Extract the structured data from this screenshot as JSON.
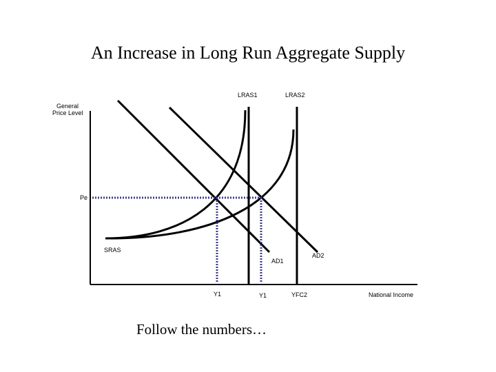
{
  "title": "An Increase in Long Run Aggregate Supply",
  "footer": "Follow the numbers…",
  "axes": {
    "y_label_line1": "General",
    "y_label_line2": "Price Level",
    "x_label": "National Income"
  },
  "labels": {
    "lras1": "LRAS1",
    "lras2": "LRAS2",
    "pe": "Pe",
    "sras": "SRAS",
    "ad1": "AD1",
    "ad2": "AD2",
    "y1_first": "Y1",
    "y1_second": "Y1",
    "yfc2": "YFC2"
  }
}
